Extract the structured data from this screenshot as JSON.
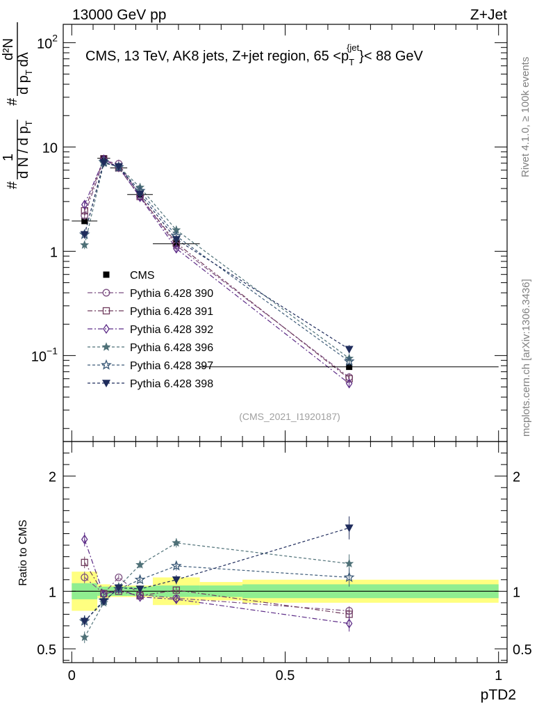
{
  "header": {
    "left": "13000 GeV pp",
    "right": "Z+Jet"
  },
  "side_labels": {
    "rivet": "Rivet 4.1.0, ≥ 100k events",
    "mcplots": "mcplots.cern.ch [arXiv:1306.3436]"
  },
  "chart_data": [
    {
      "type": "line",
      "panel": "main",
      "title": "CMS, 13 TeV, AK8 jets, Z+jet region, 65 <p_T^{jet}< 88 GeV",
      "title_parts": {
        "main": "CMS, 13 TeV, AK8 jets, Z+jet region, 65 <p",
        "sub": "T",
        "sup": "{jet",
        "rest": "}< 88 GeV"
      },
      "ylabel_parts": {
        "hash": "#",
        "one": "1",
        "den": "d N / d p",
        "T": "T",
        "hash2": "#",
        "num2": "d²N",
        "den2": "d p",
        "T2": "T",
        "dl": "dλ"
      },
      "yscale": "log",
      "ylim": [
        0.015,
        150
      ],
      "xlim": [
        -0.02,
        1.02
      ],
      "y_ticks": [
        {
          "value": 0.1,
          "base": "10",
          "exp": "−1"
        },
        {
          "value": 1,
          "base": "1",
          "exp": ""
        },
        {
          "value": 10,
          "base": "10",
          "exp": ""
        },
        {
          "value": 100,
          "base": "10",
          "exp": "2"
        }
      ],
      "source_label": "(CMS_2021_I1920187)",
      "x": [
        0.03,
        0.075,
        0.11,
        0.16,
        0.245,
        0.65
      ],
      "bin_edges": [
        0.0,
        0.06,
        0.09,
        0.13,
        0.19,
        0.3,
        1.0
      ],
      "cms": [
        1.95,
        7.8,
        6.3,
        3.5,
        1.18,
        0.078
      ],
      "series": [
        {
          "name": "Pythia 6.428 390",
          "color": "#7b4e80",
          "marker": "circle-open",
          "dash": "7,3,2,3",
          "values": [
            2.2,
            7.4,
            6.9,
            3.4,
            1.14,
            0.062
          ]
        },
        {
          "name": "Pythia 6.428 391",
          "color": "#6e3a5c",
          "marker": "square-open",
          "dash": "7,3,2,3",
          "values": [
            2.45,
            7.7,
            6.3,
            3.35,
            1.2,
            0.06
          ]
        },
        {
          "name": "Pythia 6.428 392",
          "color": "#5b2a86",
          "marker": "diamond-open",
          "dash": "7,3,2,3",
          "values": [
            2.8,
            7.6,
            6.4,
            3.3,
            1.06,
            0.054
          ]
        },
        {
          "name": "Pythia 6.428 396",
          "color": "#4e7077",
          "marker": "star-filled",
          "dash": "4,3",
          "values": [
            1.15,
            7.0,
            6.5,
            4.1,
            1.6,
            0.094
          ]
        },
        {
          "name": "Pythia 6.428 397",
          "color": "#3c5a78",
          "marker": "star-open",
          "dash": "4,3",
          "values": [
            1.45,
            7.2,
            6.4,
            3.8,
            1.4,
            0.088
          ]
        },
        {
          "name": "Pythia 6.428 398",
          "color": "#1f2c5c",
          "marker": "triangle-down-filled",
          "dash": "4,3",
          "values": [
            1.45,
            7.1,
            6.5,
            3.55,
            1.3,
            0.115
          ]
        }
      ],
      "legend": {
        "placement": "middle-left",
        "cms_label": "CMS"
      }
    },
    {
      "type": "line",
      "panel": "ratio",
      "ylabel": "Ratio to CMS",
      "xlabel": "pTD2",
      "ylim": [
        0.38,
        2.3
      ],
      "y_ticks": [
        {
          "value": 0.5,
          "label": "0.5"
        },
        {
          "value": 1,
          "label": "1"
        },
        {
          "value": 2,
          "label": "2"
        }
      ],
      "x_ticks": [
        {
          "value": 0,
          "label": "0"
        },
        {
          "value": 0.5,
          "label": "0.5"
        },
        {
          "value": 1,
          "label": "1"
        }
      ],
      "bands": {
        "yellow_half": [
          0.17,
          0.06,
          0.05,
          0.05,
          0.12,
          0.08,
          0.1
        ],
        "green_half": [
          0.07,
          0.04,
          0.04,
          0.04,
          0.05,
          0.05,
          0.06
        ],
        "edges": [
          0.0,
          0.06,
          0.09,
          0.13,
          0.19,
          0.3,
          0.4,
          1.0
        ]
      },
      "series": [
        {
          "name": "Pythia 6.428 390",
          "values": [
            1.12,
            0.98,
            1.12,
            0.97,
            0.94,
            0.83
          ],
          "err": [
            0.05,
            0.02,
            0.02,
            0.02,
            0.03,
            0.04
          ]
        },
        {
          "name": "Pythia 6.428 391",
          "values": [
            1.25,
            0.98,
            1.0,
            0.96,
            1.01,
            0.8
          ],
          "err": [
            0.05,
            0.02,
            0.02,
            0.02,
            0.03,
            0.04
          ]
        },
        {
          "name": "Pythia 6.428 392",
          "values": [
            1.45,
            0.97,
            1.02,
            0.95,
            0.93,
            0.72
          ],
          "err": [
            0.06,
            0.02,
            0.02,
            0.02,
            0.03,
            0.07
          ]
        },
        {
          "name": "Pythia 6.428 396",
          "values": [
            0.6,
            0.9,
            1.04,
            1.23,
            1.42,
            1.24
          ],
          "err": [
            0.05,
            0.02,
            0.02,
            0.03,
            0.04,
            0.08
          ]
        },
        {
          "name": "Pythia 6.428 397",
          "values": [
            0.74,
            0.92,
            1.02,
            1.1,
            1.22,
            1.12
          ],
          "err": [
            0.05,
            0.02,
            0.02,
            0.03,
            0.04,
            0.08
          ]
        },
        {
          "name": "Pythia 6.428 398",
          "values": [
            0.74,
            0.91,
            1.03,
            1.02,
            1.1,
            1.55
          ],
          "err": [
            0.05,
            0.02,
            0.02,
            0.03,
            0.04,
            0.1
          ]
        }
      ]
    }
  ]
}
